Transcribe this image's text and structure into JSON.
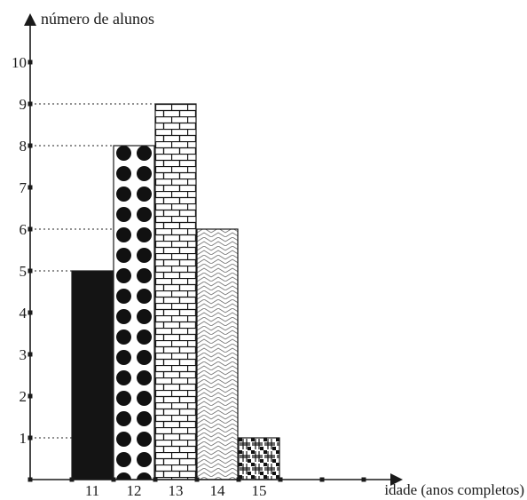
{
  "chart_data": {
    "type": "bar",
    "ylabel": "número de alunos",
    "xlabel": "idade (anos completos)",
    "categories": [
      "11",
      "12",
      "13",
      "14",
      "15"
    ],
    "values": [
      5,
      8,
      9,
      6,
      1
    ],
    "patterns": [
      "solid-black",
      "black-dots",
      "brick",
      "zigzag",
      "basket-weave"
    ],
    "yticks": [
      1,
      2,
      3,
      4,
      5,
      6,
      7,
      8,
      9,
      10
    ],
    "ylim": [
      0,
      10
    ],
    "grid": false,
    "reference_lines": "dotted lines from y-axis to each bar top"
  }
}
